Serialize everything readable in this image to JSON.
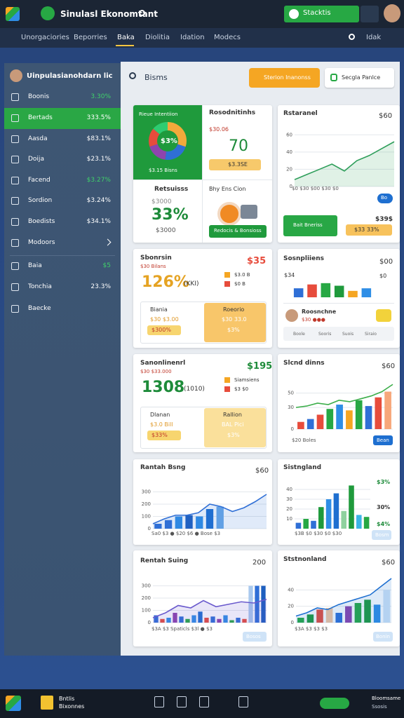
{
  "app": {
    "title": "Sinulasl Ekonomtant",
    "status": "Stacktis"
  },
  "tabs": [
    "Unorgaciories",
    "Beporries",
    "Baka",
    "Diolitia",
    "Idation",
    "Modecs"
  ],
  "tabs_right": "Idak",
  "sidebar": {
    "title": "Uinpulasianohdarn lic",
    "items": [
      {
        "label": "Boonis",
        "value": "3.30%"
      },
      {
        "label": "Bertads",
        "value": "333.5%"
      },
      {
        "label": "Aasda",
        "value": "$83.1%"
      },
      {
        "label": "Doija",
        "value": "$23.1%"
      },
      {
        "label": "Facend",
        "value": "$3.27%"
      },
      {
        "label": "Sordion",
        "value": "$3.24%"
      },
      {
        "label": "Boedists",
        "value": "$34.1%"
      },
      {
        "label": "Modoors"
      },
      {
        "label": "Baia",
        "value": "$5"
      },
      {
        "label": "Tonchia",
        "value": "23.3%"
      },
      {
        "label": "Baecke"
      }
    ]
  },
  "search": "Bisms",
  "primary_button": "Sterion Inanonss",
  "dropdown": "Secgla Panlce",
  "cards": [
    {
      "cells": [
        {
          "title": "Rieue Intentiion",
          "donut_label": "$3%",
          "legend": "$3.15 Bisns",
          "donut": [
            30,
            22,
            18,
            16,
            14
          ],
          "donut_colors": [
            "#f2a93b",
            "#2f6fd6",
            "#8e44ad",
            "#e74c3c",
            "#2ecc71"
          ]
        },
        {
          "title": "Rosodnitinhs",
          "subtitle": "$30.06",
          "value": "70",
          "pill": "$3.3SE"
        },
        {
          "title": "Retsuisss",
          "subtitle": "$3000",
          "value": "33%",
          "footer": "$3000"
        },
        {
          "title": "Bhy Ens Cion",
          "button": "Redocis & Bonsioss"
        }
      ]
    },
    {
      "title": "Rstaranel",
      "corner": "$60",
      "badge": "Bo",
      "action": "Bait Bneriss",
      "stat": "$39$",
      "pill": "$33 33%",
      "chart": {
        "ylim": [
          0,
          70
        ],
        "yticks": [
          0,
          20,
          40,
          60
        ],
        "line": [
          8,
          14,
          20,
          26,
          18,
          30,
          36,
          44,
          52
        ],
        "line_color": "#2e9e5a",
        "area": true,
        "xlabels": "$0 $30 $00 $30 $0"
      }
    },
    {
      "title": "Sbonrsin",
      "subtitle": "$30 Bilans",
      "corner": "$35",
      "value": "126%",
      "unit": "(KKI)",
      "legend": [
        "$3.0 B",
        "$0 B"
      ],
      "box_title": "Biania",
      "box_sub": "$30 $3.00",
      "box_pill": "$300%",
      "side_title": "Roeorio",
      "side_sub": "$30 33.0",
      "side_value": "$3%"
    },
    {
      "title": "Sosnpliiens",
      "corner": "$00",
      "note": "$34",
      "note2": "$0",
      "chart": {
        "ylim": [
          0,
          24
        ],
        "bars": [
          14,
          20,
          22,
          18,
          10,
          14
        ],
        "bar_colors": [
          "#2f6fd6",
          "#e74c3c",
          "#27a844",
          "#1f9a3c",
          "#f5a623",
          "#2f8ee6"
        ]
      },
      "person": "Roosnchne",
      "person_sub": "$30 ●●●",
      "chips": [
        "Boole",
        "Sooris",
        "Suois",
        "Siraio"
      ]
    },
    {
      "title": "Sanonlinenrl",
      "subtitle": "$30 $33.000",
      "corner": "$195",
      "value": "1308",
      "unit": "(1010)",
      "legend": [
        "Siamsiens",
        "$3 $0"
      ],
      "box_title": "Dlanan",
      "box_sub": "$3.0 Bill",
      "box_pill": "$33%",
      "side_title": "Rallion",
      "side_sub": "BAL Pici",
      "side_value": "$3%"
    },
    {
      "title": "Slcnd dinns",
      "corner": "$60",
      "pill": "Bean",
      "chart": {
        "ylim": [
          0,
          70
        ],
        "yticks": [
          0,
          30,
          50
        ],
        "bars": [
          10,
          14,
          20,
          28,
          34,
          26,
          40,
          32,
          44,
          52
        ],
        "bar_colors": [
          "#e74c3c",
          "#2f6fd6",
          "#e74c3c",
          "#27a844",
          "#2f8ee6",
          "#f5a623",
          "#27a844",
          "#2f6fd6",
          "#e74c3c",
          "#f7a77a"
        ],
        "line": [
          30,
          32,
          36,
          34,
          40,
          38,
          42,
          46,
          52,
          62
        ],
        "line_color": "#3cae4a",
        "xlabels": "$20 Boles"
      }
    },
    {
      "title": "Rantah Bsng",
      "corner": "$60",
      "chart": {
        "ylim": [
          0,
          400
        ],
        "yticks": [
          0,
          100,
          200,
          300
        ],
        "bars": [
          40,
          70,
          100,
          110,
          100,
          160,
          180,
          0,
          0,
          0,
          0
        ],
        "bar_colors": [
          "#2f6fd6",
          "#2f6fd6",
          "#2f8ee6",
          "#1e5fbf",
          "#2f8ee6",
          "#1e6fd0",
          "#6aa8e8",
          "#2f8ee6",
          "#2f8ee6",
          "#2f8ee6",
          "#2f8ee6"
        ],
        "line": [
          40,
          80,
          110,
          110,
          130,
          200,
          180,
          140,
          170,
          220,
          280
        ],
        "line_color": "#2f6fd6",
        "area": true,
        "xlabels": "Sa0 $3 ● $20 $6 ● Bose $3"
      }
    },
    {
      "title": "Sistngland",
      "labels": [
        "$3%",
        "30%",
        "$4%"
      ],
      "pill": "Bosm",
      "chart": {
        "ylim": [
          0,
          50
        ],
        "yticks": [
          10,
          20,
          30,
          40
        ],
        "bars": [
          6,
          10,
          8,
          22,
          30,
          36,
          18,
          44,
          14,
          12
        ],
        "bar_colors": [
          "#2f6fd6",
          "#27a844",
          "#2f6fd6",
          "#1f9a3c",
          "#2f8ee6",
          "#1e6fd0",
          "#8fd19e",
          "#1f9a3c",
          "#3cb4e6",
          "#27a844"
        ],
        "xlabels": "$3B $0 $30 $0 $30"
      }
    },
    {
      "title": "Rentah Suing",
      "corner": "200",
      "pill": "Bosos",
      "chart": {
        "ylim": [
          0,
          400
        ],
        "yticks": [
          0,
          100,
          200,
          300
        ],
        "bars": [
          60,
          30,
          40,
          80,
          50,
          30,
          60,
          90,
          40,
          50,
          30,
          60,
          20,
          40,
          30,
          300,
          300,
          300
        ],
        "bar_colors": [
          "#2f6fd6",
          "#e74c3c",
          "#2f8ee6",
          "#8e44ad",
          "#2f6fd6",
          "#27a844",
          "#2f8ee6",
          "#1e6fd0",
          "#e74c3c",
          "#2f6fd6",
          "#8e44ad",
          "#2f8ee6",
          "#27a844",
          "#2f6fd6",
          "#e74c3c",
          "#a9c9ee",
          "#2f6fd6",
          "#1e5fbf"
        ],
        "line": [
          40,
          80,
          140,
          120,
          180,
          130,
          150,
          170,
          160,
          190
        ],
        "line_color": "#6a5acd",
        "area": true,
        "xlabels": "$3A $3 Spaticls $3l ● $3"
      }
    },
    {
      "title": "Ststnonland",
      "corner": "$60",
      "pill": "Bonin",
      "chart": {
        "ylim": [
          0,
          60
        ],
        "yticks": [
          0,
          20,
          40
        ],
        "bars": [
          6,
          10,
          16,
          18,
          12,
          20,
          24,
          28,
          22,
          40
        ],
        "bar_colors": [
          "#27a844",
          "#1f9a3c",
          "#e74c3c",
          "#f5c6a0",
          "#2f6fd6",
          "#8e44ad",
          "#27a844",
          "#1f9a3c",
          "#2f8ee6",
          "#cfe3f7"
        ],
        "line": [
          8,
          12,
          18,
          16,
          22,
          26,
          30,
          34,
          44,
          54
        ],
        "line_color": "#1e6fd0",
        "area": true,
        "xlabels": "$3A $3 $3 $3"
      }
    }
  ],
  "taskbar": {
    "app": [
      "Bntlis",
      "Bixonnes"
    ],
    "tray": "Bloomsame",
    "tray_sub": "Ssosis"
  }
}
